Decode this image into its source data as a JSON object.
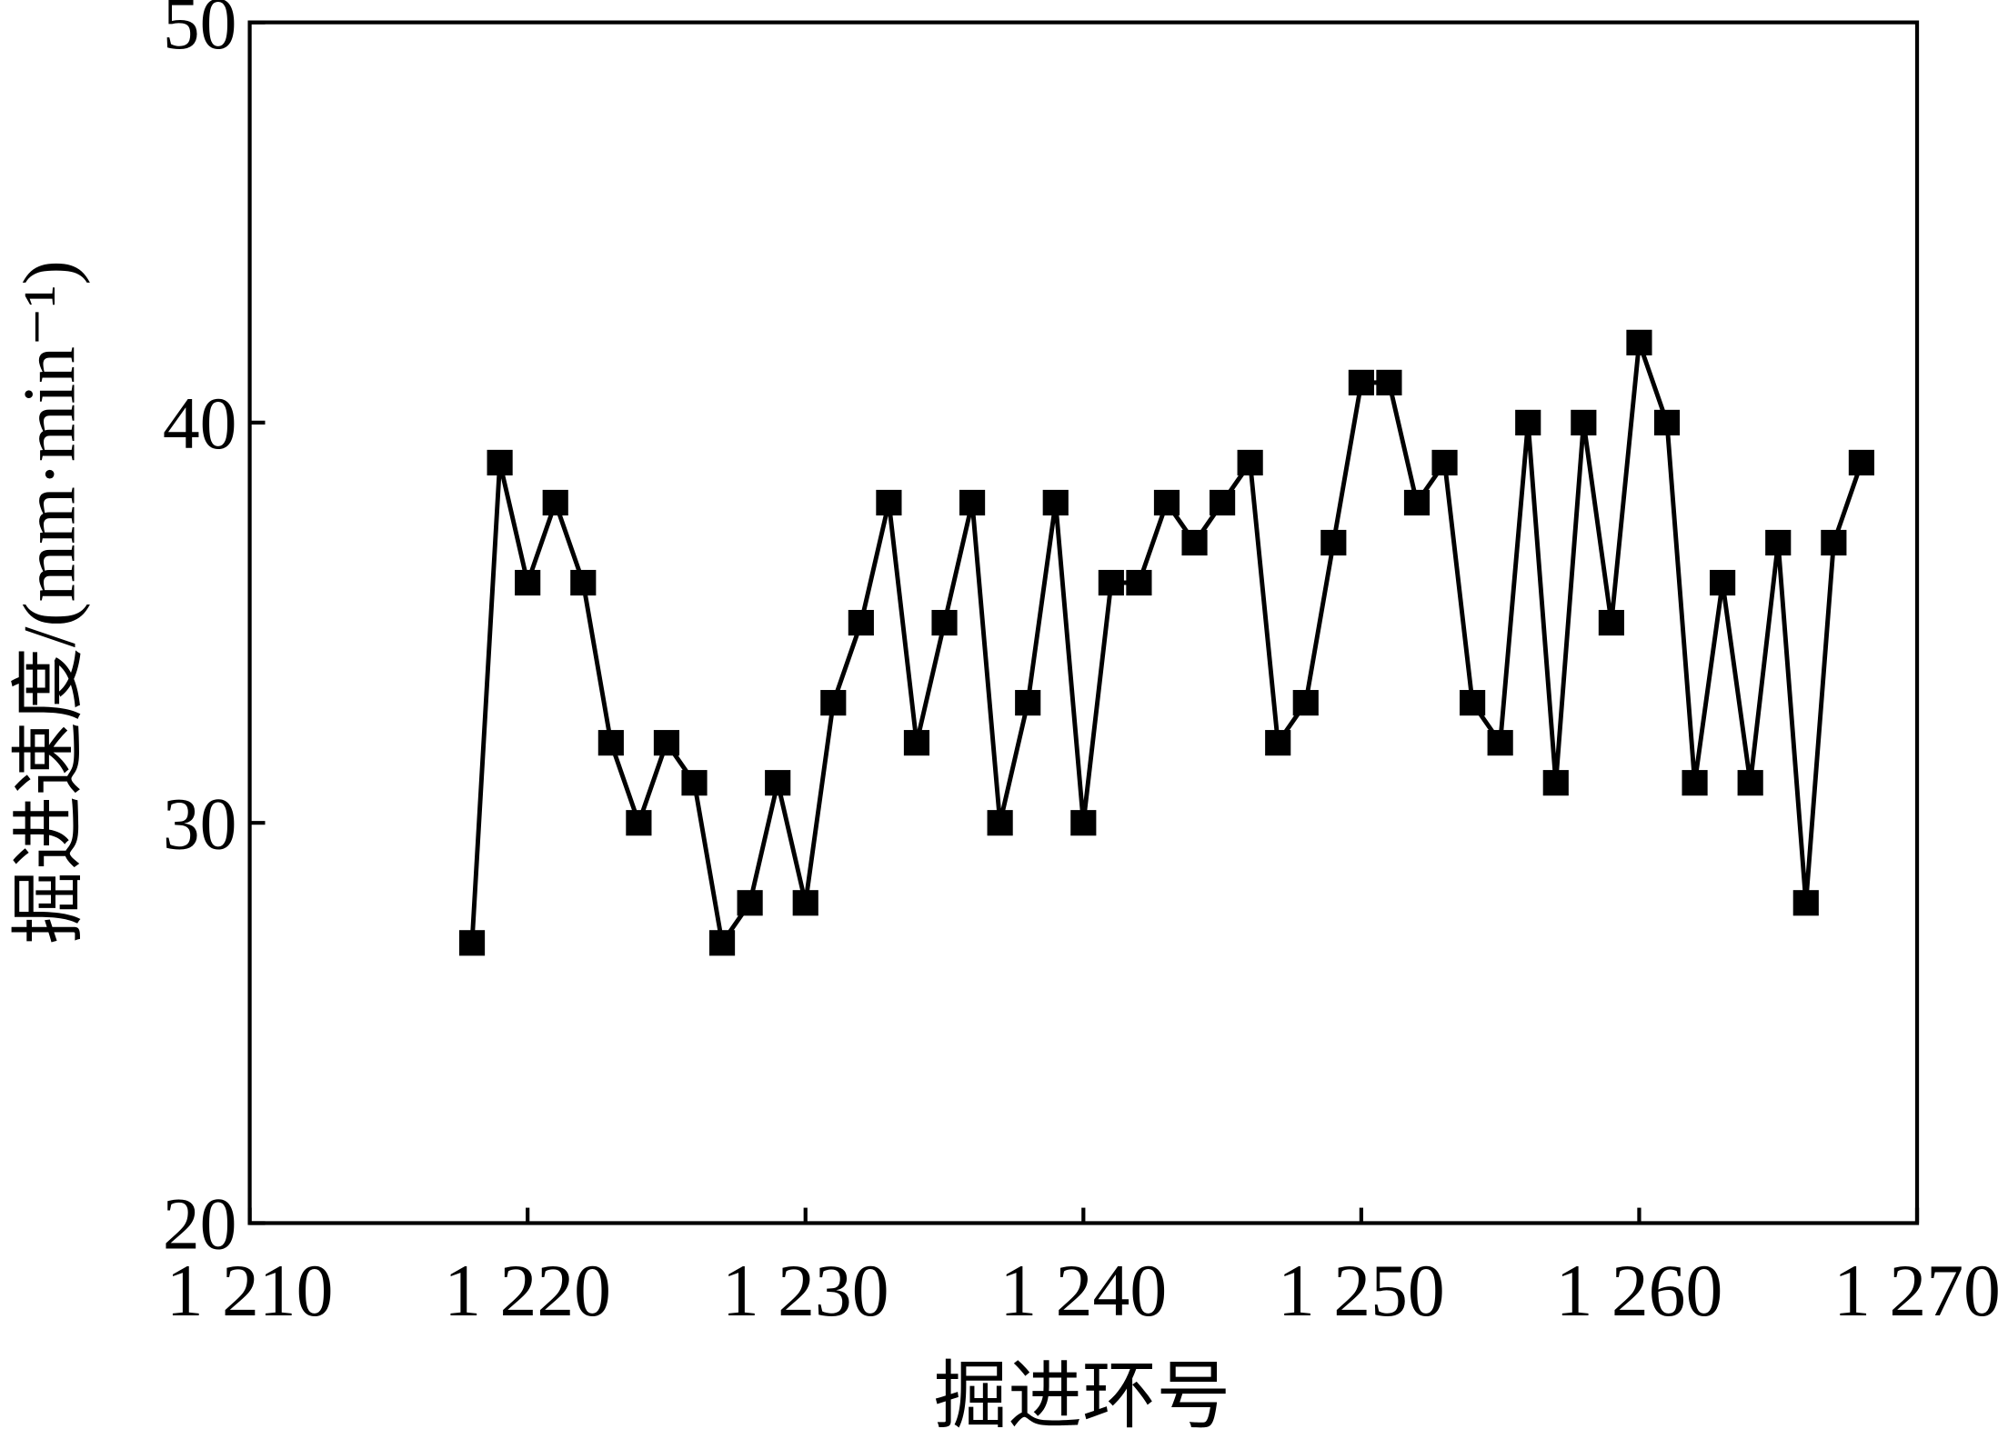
{
  "chart_data": {
    "type": "line",
    "x_label": "掘进环号",
    "y_label": "掘进速度/(mm·min⁻¹)",
    "x": [
      1218,
      1219,
      1220,
      1221,
      1222,
      1223,
      1224,
      1225,
      1226,
      1227,
      1228,
      1229,
      1230,
      1231,
      1232,
      1233,
      1234,
      1235,
      1236,
      1237,
      1238,
      1239,
      1240,
      1241,
      1242,
      1243,
      1244,
      1245,
      1246,
      1247,
      1248,
      1249,
      1250,
      1251,
      1252,
      1253,
      1254,
      1255,
      1256,
      1257,
      1258,
      1259,
      1260,
      1261,
      1262,
      1263,
      1264,
      1265,
      1266,
      1267,
      1268
    ],
    "series": [
      {
        "color": "#000000",
        "values": [
          27,
          39,
          36,
          38,
          36,
          32,
          30,
          32,
          31,
          27,
          28,
          31,
          28,
          33,
          35,
          38,
          32,
          35,
          38,
          30,
          33,
          38,
          30,
          36,
          36,
          38,
          37,
          38,
          39,
          32,
          33,
          37,
          41,
          41,
          38,
          39,
          33,
          32,
          40,
          31,
          40,
          35,
          42,
          40,
          31,
          36,
          31,
          37,
          28,
          37,
          39
        ]
      }
    ],
    "xlim": [
      1210,
      1270
    ],
    "xticks": [
      {
        "value": 1210,
        "label": "1 210"
      },
      {
        "value": 1220,
        "label": "1 220"
      },
      {
        "value": 1230,
        "label": "1 230"
      },
      {
        "value": 1240,
        "label": "1 240"
      },
      {
        "value": 1250,
        "label": "1 250"
      },
      {
        "value": 1260,
        "label": "1 260"
      },
      {
        "value": 1270,
        "label": "1 270"
      }
    ],
    "ylim": [
      20,
      50
    ],
    "yticks": [
      20,
      30,
      40,
      50
    ],
    "grid": false
  }
}
